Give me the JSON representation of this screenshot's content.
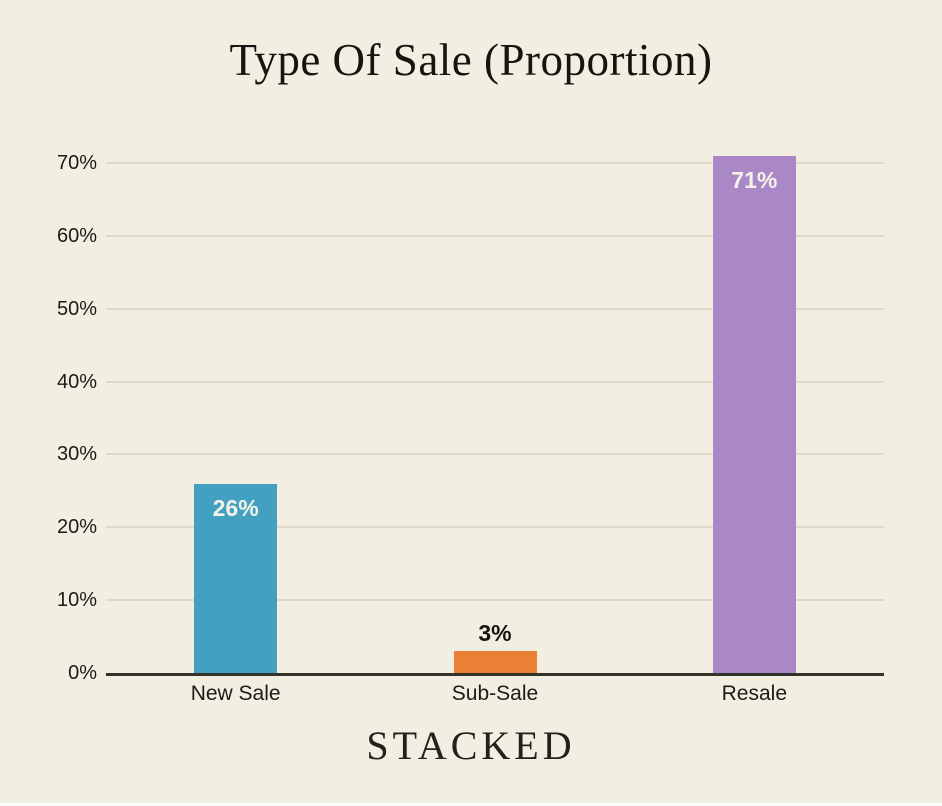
{
  "page": {
    "background_color": "#f2eee2",
    "bottom_strip_color": "#fcfcfa"
  },
  "header": {
    "title": "Type Of Sale (Proportion)"
  },
  "footer": {
    "brand": "STACKED"
  },
  "colors": {
    "title_text": "#15150f",
    "axis_text": "#1c1b16",
    "gridline": "#ded9cb",
    "axis_line": "#33322b",
    "value_label_light": "#f5f2e9",
    "value_label_dark": "#141410",
    "brand_text": "#22211c"
  },
  "chart_data": {
    "type": "bar",
    "title": "Type Of Sale (Proportion)",
    "categories": [
      "New Sale",
      "Sub-Sale",
      "Resale"
    ],
    "values": [
      26,
      3,
      71
    ],
    "value_labels": [
      "26%",
      "3%",
      "71%"
    ],
    "bar_colors": [
      "#42a0c0",
      "#ea8033",
      "#aa87c6"
    ],
    "value_label_placement": [
      "inside",
      "above",
      "inside"
    ],
    "xlabel": "",
    "ylabel": "",
    "ylim": [
      0,
      70
    ],
    "ytick_step": 10,
    "ytick_labels": [
      "0%",
      "10%",
      "20%",
      "30%",
      "40%",
      "50%",
      "60%",
      "70%"
    ],
    "grid": "horizontal",
    "legend": "none"
  }
}
